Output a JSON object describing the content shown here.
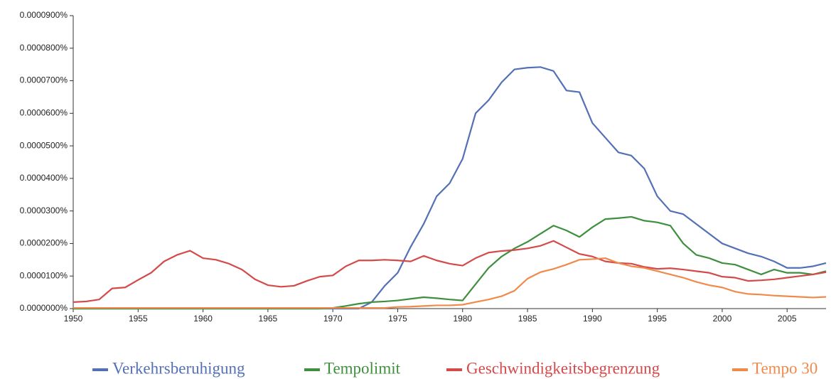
{
  "chart_data": {
    "type": "line",
    "x": [
      1950,
      1951,
      1952,
      1953,
      1954,
      1955,
      1956,
      1957,
      1958,
      1959,
      1960,
      1961,
      1962,
      1963,
      1964,
      1965,
      1966,
      1967,
      1968,
      1969,
      1970,
      1971,
      1972,
      1973,
      1974,
      1975,
      1976,
      1977,
      1978,
      1979,
      1980,
      1981,
      1982,
      1983,
      1984,
      1985,
      1986,
      1987,
      1988,
      1989,
      1990,
      1991,
      1992,
      1993,
      1994,
      1995,
      1996,
      1997,
      1998,
      1999,
      2000,
      2001,
      2002,
      2003,
      2004,
      2005,
      2006,
      2007,
      2008
    ],
    "xlim": [
      1950,
      2008
    ],
    "xticks": [
      1950,
      1955,
      1960,
      1965,
      1970,
      1975,
      1980,
      1985,
      1990,
      1995,
      2000,
      2005
    ],
    "ylim": [
      0,
      9e-05
    ],
    "yticks": [
      {
        "value": 0,
        "label": "0.0000000%"
      },
      {
        "value": 1e-05,
        "label": "0.0000100%"
      },
      {
        "value": 2e-05,
        "label": "0.0000200%"
      },
      {
        "value": 3e-05,
        "label": "0.0000300%"
      },
      {
        "value": 4e-05,
        "label": "0.0000400%"
      },
      {
        "value": 5e-05,
        "label": "0.0000500%"
      },
      {
        "value": 6e-05,
        "label": "0.0000600%"
      },
      {
        "value": 7e-05,
        "label": "0.0000700%"
      },
      {
        "value": 8e-05,
        "label": "0.0000800%"
      },
      {
        "value": 9e-05,
        "label": "0.0000900%"
      }
    ],
    "legend": "bottom",
    "series": [
      {
        "name": "Verkehrsberuhigung",
        "color": "#5470b4",
        "values": [
          0,
          0,
          0,
          0,
          0,
          0,
          0,
          0,
          0,
          0,
          0,
          0,
          0,
          0,
          0,
          0,
          0,
          0,
          0,
          0,
          0,
          0,
          0,
          2e-06,
          7e-06,
          1.1e-05,
          1.9e-05,
          2.6e-05,
          3.45e-05,
          3.85e-05,
          4.6e-05,
          6e-05,
          6.4e-05,
          6.95e-05,
          7.35e-05,
          7.4e-05,
          7.42e-05,
          7.3e-05,
          6.7e-05,
          6.65e-05,
          5.7e-05,
          5.25e-05,
          4.8e-05,
          4.7e-05,
          4.3e-05,
          3.45e-05,
          3e-05,
          2.9e-05,
          2.6e-05,
          2.3e-05,
          2e-05,
          1.85e-05,
          1.7e-05,
          1.6e-05,
          1.45e-05,
          1.25e-05,
          1.25e-05,
          1.3e-05,
          1.4e-05
        ]
      },
      {
        "name": "Tempolimit",
        "color": "#3f8f3f",
        "values": [
          0,
          0,
          0,
          0,
          0,
          0,
          0,
          0,
          0,
          0,
          0,
          0,
          0,
          0,
          0,
          0,
          0,
          0,
          0,
          0,
          2e-07,
          8e-07,
          1.5e-06,
          2e-06,
          2.2e-06,
          2.5e-06,
          3e-06,
          3.5e-06,
          3.2e-06,
          2.8e-06,
          2.5e-06,
          7.5e-06,
          1.25e-05,
          1.6e-05,
          1.85e-05,
          2.05e-05,
          2.3e-05,
          2.55e-05,
          2.4e-05,
          2.2e-05,
          2.5e-05,
          2.75e-05,
          2.78e-05,
          2.82e-05,
          2.7e-05,
          2.65e-05,
          2.55e-05,
          2e-05,
          1.65e-05,
          1.55e-05,
          1.4e-05,
          1.35e-05,
          1.2e-05,
          1.05e-05,
          1.2e-05,
          1.1e-05,
          1.1e-05,
          1.05e-05,
          1.15e-05
        ]
      },
      {
        "name": "Geschwindigkeitsbegrenzung",
        "color": "#d44a4a",
        "values": [
          2e-06,
          2.2e-06,
          2.8e-06,
          6.2e-06,
          6.5e-06,
          8.8e-06,
          1.1e-05,
          1.45e-05,
          1.65e-05,
          1.78e-05,
          1.55e-05,
          1.5e-05,
          1.38e-05,
          1.2e-05,
          9e-06,
          7.2e-06,
          6.7e-06,
          7e-06,
          8.5e-06,
          9.8e-06,
          1.02e-05,
          1.3e-05,
          1.48e-05,
          1.48e-05,
          1.5e-05,
          1.48e-05,
          1.45e-05,
          1.62e-05,
          1.48e-05,
          1.38e-05,
          1.32e-05,
          1.55e-05,
          1.72e-05,
          1.77e-05,
          1.8e-05,
          1.85e-05,
          1.93e-05,
          2.08e-05,
          1.88e-05,
          1.68e-05,
          1.6e-05,
          1.45e-05,
          1.4e-05,
          1.38e-05,
          1.28e-05,
          1.22e-05,
          1.24e-05,
          1.2e-05,
          1.15e-05,
          1.1e-05,
          9.8e-06,
          9.5e-06,
          8.5e-06,
          8.7e-06,
          9e-06,
          9.5e-06,
          1e-05,
          1.05e-05,
          1.12e-05
        ]
      },
      {
        "name": "Tempo 30",
        "color": "#f08a4b",
        "values": [
          2e-07,
          2e-07,
          2e-07,
          2e-07,
          2e-07,
          2e-07,
          2e-07,
          2e-07,
          2e-07,
          2e-07,
          2e-07,
          2e-07,
          2e-07,
          2e-07,
          2e-07,
          2e-07,
          2e-07,
          2e-07,
          2e-07,
          2e-07,
          2e-07,
          2e-07,
          2e-07,
          2e-07,
          2e-07,
          5e-07,
          6e-07,
          8e-07,
          1e-06,
          1e-06,
          1.2e-06,
          2e-06,
          2.8e-06,
          3.8e-06,
          5.5e-06,
          9.2e-06,
          1.12e-05,
          1.22e-05,
          1.35e-05,
          1.5e-05,
          1.52e-05,
          1.55e-05,
          1.4e-05,
          1.3e-05,
          1.25e-05,
          1.15e-05,
          1.05e-05,
          9.5e-06,
          8.2e-06,
          7.2e-06,
          6.5e-06,
          5.2e-06,
          4.5e-06,
          4.3e-06,
          4e-06,
          3.8e-06,
          3.6e-06,
          3.4e-06,
          3.6e-06
        ]
      }
    ]
  }
}
